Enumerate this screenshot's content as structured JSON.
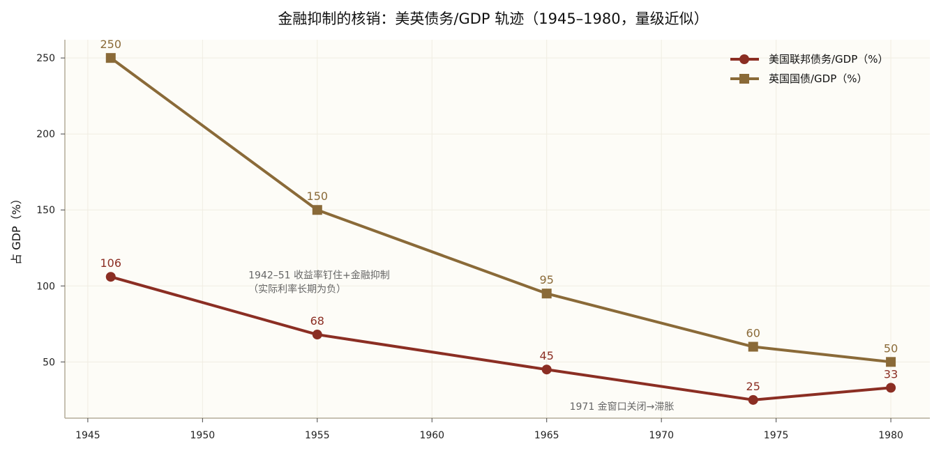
{
  "chart_data": {
    "type": "line",
    "title": "金融抑制的核销：美英债务/GDP 轨迹（1945–1980，量级近似）",
    "xlabel": "",
    "ylabel": "占 GDP（%）",
    "xlim": [
      1944.0,
      1981.7
    ],
    "ylim": [
      13,
      262
    ],
    "x_ticks": [
      1945,
      1950,
      1955,
      1960,
      1965,
      1970,
      1975,
      1980
    ],
    "y_ticks": [
      50,
      100,
      150,
      200,
      250
    ],
    "grid": true,
    "legend_position": "top-right",
    "series": [
      {
        "name": "美国联邦债务/GDP（%）",
        "color": "#8b2e23",
        "marker": "circle",
        "x": [
          1946,
          1955,
          1965,
          1974,
          1980
        ],
        "values": [
          106,
          68,
          45,
          25,
          33
        ],
        "labels": [
          "106",
          "68",
          "45",
          "25",
          "33"
        ]
      },
      {
        "name": "英国国债/GDP（%）",
        "color": "#8a6a38",
        "marker": "square",
        "x": [
          1946,
          1955,
          1965,
          1974,
          1980
        ],
        "values": [
          250,
          150,
          95,
          60,
          50
        ],
        "labels": [
          "250",
          "150",
          "95",
          "60",
          "50"
        ]
      }
    ],
    "annotations": [
      {
        "text_lines": [
          "1942–51 收益率钉住+金融抑制",
          "（实际利率长期为负）"
        ],
        "x": 1952.0,
        "y": 100
      },
      {
        "text_lines": [
          "1971 金窗口关闭→滞胀"
        ],
        "x": 1966.0,
        "y": 13.5
      }
    ],
    "colors": {
      "plot_bg": "#fdfcf7",
      "axis": "#b3ab98",
      "grid": "#f0ede2"
    }
  }
}
